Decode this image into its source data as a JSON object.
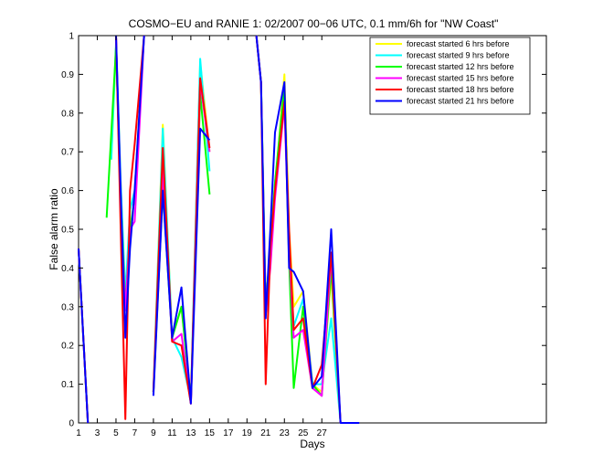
{
  "chart_data": {
    "type": "line",
    "title": "COSMO−EU and RANIE 1: 02/2007 00−06 UTC, 0.1 mm/6h for \"NW Coast\"",
    "xlabel": "Days",
    "ylabel": "False alarm ratio",
    "xlim": [
      1,
      51
    ],
    "ylim": [
      0,
      1
    ],
    "xticks": [
      1,
      3,
      5,
      7,
      9,
      11,
      13,
      15,
      17,
      19,
      21,
      23,
      25,
      27
    ],
    "yticks": [
      0,
      0.1,
      0.2,
      0.3,
      0.4,
      0.5,
      0.6,
      0.7,
      0.8,
      0.9,
      1
    ],
    "ytick_labels": [
      "0",
      "0.1",
      "0.2",
      "0.3",
      "0.4",
      "0.5",
      "0.6",
      "0.7",
      "0.8",
      "0.9",
      "1"
    ],
    "grid": false,
    "legend_position": "top-right",
    "series": [
      {
        "name": "forecast started 6 hrs before",
        "color": "#ffff00",
        "segments": [
          [
            [
              1,
              0.45
            ],
            [
              2,
              0
            ]
          ],
          [
            [
              4.5,
              0.68
            ],
            [
              5,
              0.97
            ],
            [
              5.5,
              0.62
            ],
            [
              6,
              0.3
            ],
            [
              6.5,
              0.55
            ],
            [
              7,
              0.6
            ],
            [
              8,
              1
            ]
          ],
          [
            [
              9,
              0.08
            ],
            [
              10,
              0.77
            ],
            [
              11,
              0.22
            ],
            [
              12,
              0.3
            ],
            [
              13,
              0.06
            ],
            [
              14,
              0.93
            ],
            [
              15,
              0.7
            ]
          ],
          [
            [
              20,
              1
            ],
            [
              20.5,
              0.88
            ],
            [
              21,
              0.3
            ],
            [
              21.5,
              0.45
            ],
            [
              22,
              0.6
            ],
            [
              23,
              0.9
            ],
            [
              23.5,
              0.5
            ],
            [
              24,
              0.3
            ],
            [
              25,
              0.34
            ],
            [
              26,
              0.1
            ],
            [
              27,
              0.08
            ],
            [
              28,
              0.38
            ],
            [
              29,
              0
            ]
          ]
        ]
      },
      {
        "name": "forecast started 9 hrs before",
        "color": "#00ffff",
        "segments": [
          [
            [
              1,
              0.45
            ],
            [
              2,
              0
            ]
          ],
          [
            [
              4.5,
              0.68
            ],
            [
              5,
              0.98
            ],
            [
              5.5,
              0.62
            ],
            [
              6,
              0.33
            ],
            [
              6.5,
              0.55
            ],
            [
              7,
              0.6
            ],
            [
              8,
              1
            ]
          ],
          [
            [
              9,
              0.08
            ],
            [
              10,
              0.76
            ],
            [
              11,
              0.22
            ],
            [
              12,
              0.17
            ],
            [
              13,
              0.06
            ],
            [
              14,
              0.94
            ],
            [
              15,
              0.65
            ]
          ],
          [
            [
              20,
              1
            ],
            [
              20.5,
              0.88
            ],
            [
              21,
              0.3
            ],
            [
              21.5,
              0.45
            ],
            [
              22,
              0.62
            ],
            [
              23,
              0.85
            ],
            [
              23.5,
              0.45
            ],
            [
              24,
              0.25
            ],
            [
              25,
              0.32
            ],
            [
              26,
              0.1
            ],
            [
              27,
              0.1
            ],
            [
              28,
              0.27
            ],
            [
              29,
              0
            ]
          ]
        ]
      },
      {
        "name": "forecast started 12 hrs before",
        "color": "#00ff00",
        "segments": [
          [
            [
              1,
              0.45
            ],
            [
              2,
              0
            ]
          ],
          [
            [
              4,
              0.53
            ],
            [
              5,
              0.97
            ],
            [
              5.5,
              0.58
            ],
            [
              6,
              0.3
            ],
            [
              6.5,
              0.5
            ],
            [
              7,
              0.58
            ],
            [
              8,
              1
            ]
          ],
          [
            [
              9,
              0.08
            ],
            [
              10,
              0.6
            ],
            [
              11,
              0.22
            ],
            [
              12,
              0.3
            ],
            [
              13,
              0.06
            ],
            [
              14,
              0.85
            ],
            [
              15,
              0.59
            ]
          ],
          [
            [
              20,
              1
            ],
            [
              20.5,
              0.88
            ],
            [
              21,
              0.3
            ],
            [
              21.5,
              0.45
            ],
            [
              22,
              0.62
            ],
            [
              23,
              0.87
            ],
            [
              23.5,
              0.42
            ],
            [
              24,
              0.09
            ],
            [
              25,
              0.3
            ],
            [
              26,
              0.1
            ],
            [
              27,
              0.07
            ],
            [
              28,
              0.4
            ],
            [
              29,
              0
            ]
          ]
        ]
      },
      {
        "name": "forecast started 15 hrs before",
        "color": "#ff00ff",
        "segments": [
          [
            [
              1,
              0.45
            ],
            [
              2,
              0
            ]
          ],
          [
            [
              5,
              1
            ],
            [
              5.5,
              0.55
            ],
            [
              6,
              0.29
            ],
            [
              6.5,
              0.5
            ],
            [
              7,
              0.52
            ],
            [
              8,
              1
            ]
          ],
          [
            [
              9,
              0.08
            ],
            [
              10,
              0.65
            ],
            [
              11,
              0.21
            ],
            [
              12,
              0.23
            ],
            [
              13,
              0.05
            ],
            [
              14,
              0.88
            ],
            [
              15,
              0.7
            ]
          ],
          [
            [
              20,
              1
            ],
            [
              20.5,
              0.88
            ],
            [
              21,
              0.28
            ],
            [
              21.5,
              0.4
            ],
            [
              22,
              0.58
            ],
            [
              23,
              0.82
            ],
            [
              23.5,
              0.45
            ],
            [
              24,
              0.22
            ],
            [
              25,
              0.24
            ],
            [
              26,
              0.09
            ],
            [
              27,
              0.07
            ],
            [
              28,
              0.43
            ],
            [
              29,
              0
            ]
          ]
        ]
      },
      {
        "name": "forecast started 18 hrs before",
        "color": "#ff0000",
        "segments": [
          [
            [
              1,
              0.45
            ],
            [
              2,
              0
            ]
          ],
          [
            [
              5,
              1
            ],
            [
              5.5,
              0.5
            ],
            [
              6,
              0.01
            ],
            [
              6.5,
              0.6
            ],
            [
              7,
              0.72
            ],
            [
              8,
              1
            ]
          ],
          [
            [
              9,
              0.08
            ],
            [
              10,
              0.71
            ],
            [
              11,
              0.21
            ],
            [
              12,
              0.2
            ],
            [
              13,
              0.05
            ],
            [
              14,
              0.89
            ],
            [
              15,
              0.71
            ]
          ],
          [
            [
              20,
              1
            ],
            [
              20.5,
              0.88
            ],
            [
              21,
              0.1
            ],
            [
              21.5,
              0.45
            ],
            [
              22,
              0.6
            ],
            [
              23,
              0.83
            ],
            [
              23.5,
              0.5
            ],
            [
              24,
              0.24
            ],
            [
              25,
              0.27
            ],
            [
              26,
              0.09
            ],
            [
              27,
              0.15
            ],
            [
              28,
              0.44
            ],
            [
              29,
              0
            ]
          ]
        ]
      },
      {
        "name": "forecast started 21 hrs before",
        "color": "#0000ff",
        "segments": [
          [
            [
              1,
              0.45
            ],
            [
              2,
              0
            ]
          ],
          [
            [
              5,
              1
            ],
            [
              5.5,
              0.6
            ],
            [
              6,
              0.22
            ],
            [
              6.5,
              0.45
            ],
            [
              7,
              0.6
            ],
            [
              8,
              1
            ]
          ],
          [
            [
              9,
              0.07
            ],
            [
              10,
              0.6
            ],
            [
              11,
              0.22
            ],
            [
              12,
              0.35
            ],
            [
              13,
              0.05
            ],
            [
              14,
              0.76
            ],
            [
              15,
              0.73
            ]
          ],
          [
            [
              20,
              1
            ],
            [
              20.5,
              0.88
            ],
            [
              21,
              0.27
            ],
            [
              21.5,
              0.5
            ],
            [
              22,
              0.75
            ],
            [
              23,
              0.88
            ],
            [
              23.5,
              0.4
            ],
            [
              24,
              0.39
            ],
            [
              25,
              0.34
            ],
            [
              26,
              0.09
            ],
            [
              27,
              0.12
            ],
            [
              28,
              0.5
            ],
            [
              29,
              0
            ],
            [
              31,
              0
            ]
          ]
        ]
      }
    ]
  }
}
